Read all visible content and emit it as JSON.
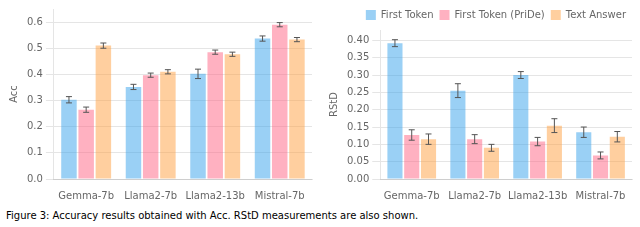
{
  "chart_data": [
    {
      "type": "bar",
      "categories": [
        "Gemma-7b",
        "Llama2-7b",
        "Llama2-13b",
        "Mistral-7b"
      ],
      "series": [
        {
          "name": "First Token",
          "values": [
            0.303,
            0.352,
            0.402,
            0.537
          ],
          "errors": [
            0.012,
            0.01,
            0.018,
            0.01
          ]
        },
        {
          "name": "First Token (PriDe)",
          "values": [
            0.265,
            0.397,
            0.485,
            0.59
          ],
          "errors": [
            0.01,
            0.008,
            0.008,
            0.008
          ]
        },
        {
          "name": "Text Answer",
          "values": [
            0.51,
            0.41,
            0.477,
            0.533
          ],
          "errors": [
            0.01,
            0.008,
            0.008,
            0.008
          ]
        }
      ],
      "ylabel": "Acc",
      "ylim": [
        0.0,
        0.65
      ],
      "yticks": [
        {
          "value": 0.0,
          "label": "0.0"
        },
        0.1,
        0.2,
        0.3,
        0.4,
        0.5,
        0.6
      ],
      "grid": "y",
      "annotations": [
        "Figure 3: Accuracy results obtained with Acc. RStD measurements are also shown."
      ]
    },
    {
      "type": "bar",
      "categories": [
        "Gemma-7b",
        "Llama2-7b",
        "Llama2-13b",
        "Mistral-7b"
      ],
      "series": [
        {
          "name": "First Token",
          "values": [
            0.392,
            0.255,
            0.3,
            0.135
          ],
          "errors": [
            0.01,
            0.02,
            0.01,
            0.015
          ]
        },
        {
          "name": "First Token (PriDe)",
          "values": [
            0.127,
            0.115,
            0.108,
            0.068
          ],
          "errors": [
            0.015,
            0.013,
            0.012,
            0.01
          ]
        },
        {
          "name": "Text Answer",
          "values": [
            0.115,
            0.09,
            0.154,
            0.122
          ],
          "errors": [
            0.015,
            0.01,
            0.02,
            0.015
          ]
        }
      ],
      "ylabel": "RStD",
      "ylim": [
        0.0,
        0.43
      ],
      "yticks": [
        {
          "value": 0.0,
          "label": "0.00"
        },
        0.05,
        {
          "value": 0.1,
          "label": "0.10"
        },
        0.15,
        {
          "value": 0.2,
          "label": "0.20"
        },
        0.25,
        {
          "value": 0.3,
          "label": "0.30"
        },
        0.35,
        {
          "value": 0.4,
          "label": "0.40"
        }
      ],
      "grid": "y",
      "legend": "upper right"
    }
  ]
}
